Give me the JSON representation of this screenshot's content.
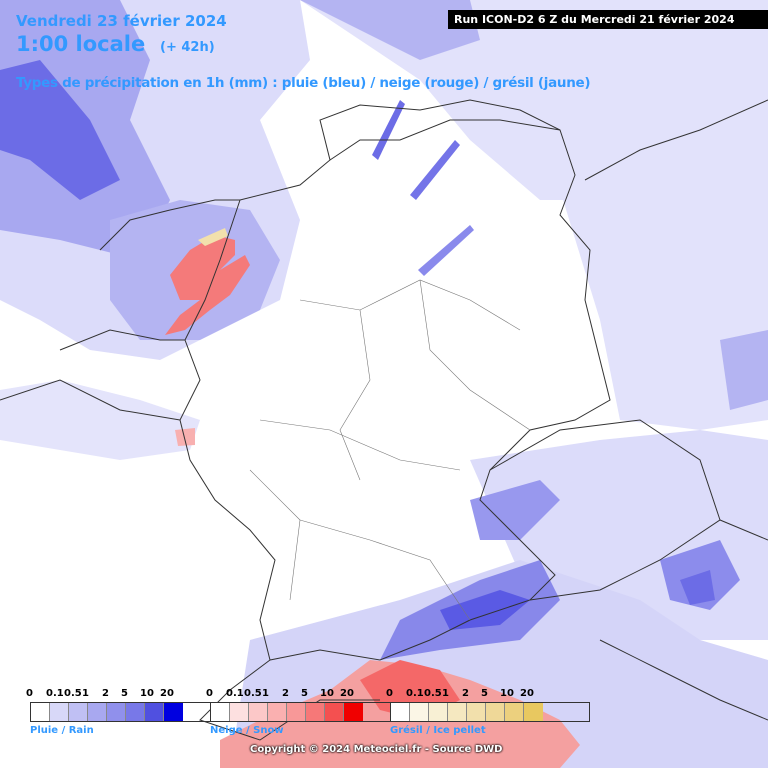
{
  "header": {
    "date": "Vendredi 23 février 2024",
    "time": "1:00 locale",
    "offset": "(+ 42h)",
    "subtitle": "Types de précipitation en 1h (mm) : pluie (bleu) / neige (rouge) / grésil (jaune)",
    "run": "Run ICON-D2 6 Z du Mercredi 21 février 2024"
  },
  "legends": [
    {
      "id": "rain",
      "title": "Pluie / Rain",
      "ticks": [
        "0",
        "0.1",
        "0.5",
        "1",
        "2",
        "5",
        "10",
        "20"
      ],
      "colors": [
        "#ffffff",
        "#d8d8f8",
        "#c0c0f4",
        "#a8a8f0",
        "#9090ec",
        "#7878e8",
        "#5050e0",
        "#0000e0"
      ]
    },
    {
      "id": "snow",
      "title": "Neige / Snow",
      "ticks": [
        "0",
        "0.1",
        "0.5",
        "1",
        "2",
        "5",
        "10",
        "20"
      ],
      "colors": [
        "#ffffff",
        "#fde0e0",
        "#fcc8c8",
        "#fab0b0",
        "#f89898",
        "#f67878",
        "#f45050",
        "#f00000"
      ]
    },
    {
      "id": "sleet",
      "title": "Grésil / Ice pellet",
      "ticks": [
        "0",
        "0.1",
        "0.5",
        "1",
        "2",
        "5",
        "10",
        "20"
      ],
      "colors": [
        "#ffffff",
        "#fbf6e6",
        "#f8f0d4",
        "#f5e8c0",
        "#f2e0ac",
        "#efd898",
        "#ecd07e",
        "#e8c860"
      ]
    }
  ],
  "copyright": "Copyright © 2024 Meteociel.fr - Source DWD",
  "colors": {
    "header_text": "#3399ff",
    "rain_light": "#dcdcfa",
    "rain_mid": "#a8a8f0",
    "rain_heavy": "#6c6ce6",
    "snow": "#f47a7a",
    "borders": "#333333"
  }
}
